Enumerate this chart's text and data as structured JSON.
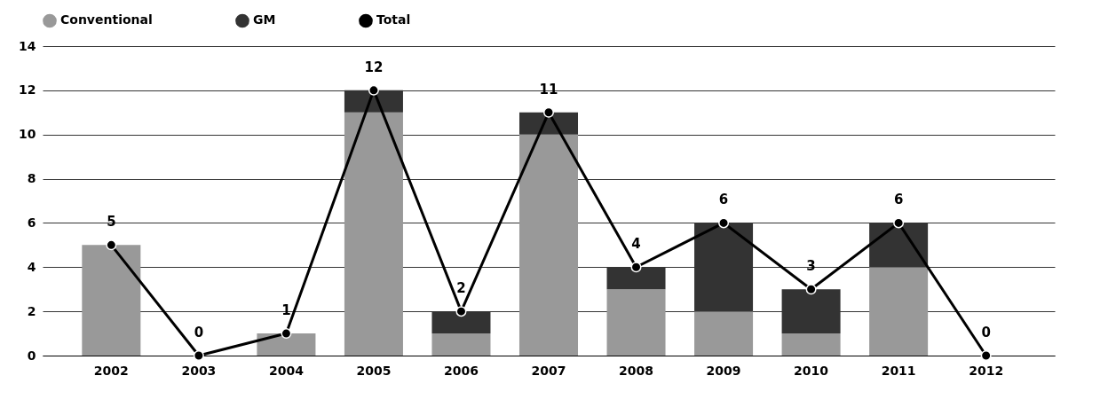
{
  "chart_data": {
    "type": "bar",
    "stacked": true,
    "categories": [
      "2002",
      "2003",
      "2004",
      "2005",
      "2006",
      "2007",
      "2008",
      "2009",
      "2010",
      "2011",
      "2012"
    ],
    "series": [
      {
        "name": "Conventional",
        "color": "#999999",
        "values": [
          5,
          0,
          1,
          11,
          1,
          10,
          3,
          2,
          1,
          4,
          0
        ]
      },
      {
        "name": "GM",
        "color": "#333333",
        "values": [
          0,
          0,
          0,
          1,
          1,
          1,
          1,
          4,
          2,
          2,
          0
        ]
      },
      {
        "name": "Total",
        "type": "line",
        "color": "#000000",
        "marker": "circle",
        "line_style": "solid",
        "values": [
          5,
          0,
          1,
          12,
          2,
          11,
          4,
          6,
          3,
          6,
          0
        ],
        "value_labels": [
          "5",
          "0",
          "1",
          "12",
          "2",
          "11",
          "4",
          "6",
          "3",
          "6",
          "0"
        ]
      }
    ],
    "ylim": [
      0,
      14
    ],
    "yticks": [
      0,
      2,
      4,
      6,
      8,
      10,
      12,
      14
    ],
    "grid": "y",
    "legend": "top"
  }
}
